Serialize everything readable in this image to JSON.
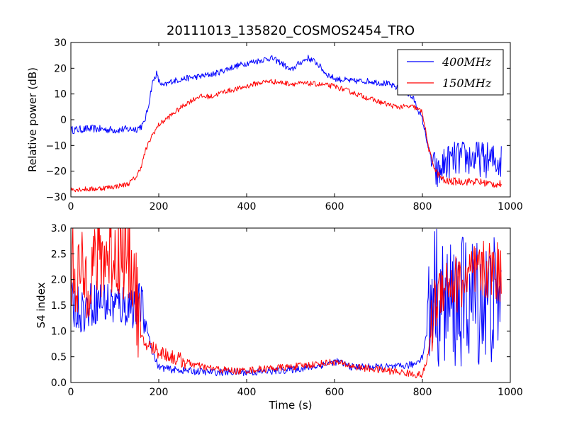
{
  "figure_title": "20111013_135820_COSMOS2454_TRO",
  "chart_data": [
    {
      "type": "line",
      "title": "20111013_135820_COSMOS2454_TRO",
      "xlabel": "",
      "ylabel": "Relative power (dB)",
      "xlim": [
        0,
        1000
      ],
      "ylim": [
        -30,
        30
      ],
      "xticks": [
        "0",
        "200",
        "400",
        "600",
        "800",
        "1000"
      ],
      "yticks": [
        "−30",
        "−20",
        "−10",
        "0",
        "10",
        "20",
        "30"
      ],
      "grid": false,
      "legend": "top-right",
      "series": [
        {
          "name": "400MHz",
          "legend_label": "400MHz",
          "color": "#0000ff",
          "x": [
            0,
            50,
            100,
            150,
            165,
            175,
            185,
            195,
            200,
            210,
            230,
            260,
            300,
            330,
            360,
            400,
            430,
            455,
            480,
            500,
            520,
            540,
            560,
            580,
            600,
            640,
            680,
            720,
            760,
            780,
            800,
            815,
            825,
            835,
            850,
            880,
            920,
            960,
            980
          ],
          "y": [
            -4,
            -3.5,
            -4,
            -3.5,
            -2,
            4,
            14,
            18,
            15,
            13,
            15,
            16,
            17,
            18,
            20,
            22,
            23,
            24,
            22,
            19,
            22,
            24,
            22,
            18,
            16,
            15,
            15,
            14,
            11,
            8,
            0,
            -12,
            -18,
            -22,
            -17,
            -15,
            -15,
            -16,
            -16
          ]
        },
        {
          "name": "150MHz",
          "legend_label": "150MHz",
          "color": "#ff0000",
          "x": [
            0,
            50,
            100,
            130,
            150,
            160,
            170,
            185,
            200,
            230,
            260,
            290,
            320,
            350,
            380,
            420,
            450,
            500,
            550,
            600,
            650,
            700,
            740,
            780,
            800,
            815,
            830,
            850,
            880,
            920,
            960,
            980
          ],
          "y": [
            -27,
            -27,
            -26,
            -25,
            -22,
            -18,
            -12,
            -6,
            -2,
            2,
            6,
            9,
            9,
            11,
            12,
            14,
            15,
            14,
            14,
            13,
            10,
            7,
            5,
            5,
            3,
            -12,
            -20,
            -24,
            -24,
            -24,
            -25,
            -25
          ]
        }
      ]
    },
    {
      "type": "line",
      "title": "",
      "xlabel": "Time (s)",
      "ylabel": "S4 index",
      "xlim": [
        0,
        1000
      ],
      "ylim": [
        0,
        3
      ],
      "xticks": [
        "0",
        "200",
        "400",
        "600",
        "800",
        "1000"
      ],
      "yticks": [
        "0.0",
        "0.5",
        "1.0",
        "1.5",
        "2.0",
        "2.5",
        "3.0"
      ],
      "grid": false,
      "series": [
        {
          "name": "400MHz",
          "color": "#0000ff",
          "x": [
            0,
            30,
            60,
            100,
            140,
            160,
            175,
            185,
            200,
            230,
            280,
            330,
            380,
            420,
            460,
            500,
            550,
            600,
            610,
            640,
            700,
            740,
            780,
            800,
            815,
            825,
            840,
            870,
            900,
            940,
            980
          ],
          "y": [
            1.5,
            1.4,
            1.6,
            1.5,
            1.5,
            1.5,
            1.0,
            0.6,
            0.3,
            0.25,
            0.22,
            0.2,
            0.2,
            0.2,
            0.22,
            0.25,
            0.3,
            0.4,
            0.4,
            0.3,
            0.3,
            0.3,
            0.35,
            0.5,
            1.2,
            2.0,
            1.5,
            1.5,
            1.6,
            1.6,
            1.6
          ]
        },
        {
          "name": "150MHz",
          "color": "#ff0000",
          "x": [
            0,
            30,
            60,
            90,
            120,
            140,
            150,
            160,
            180,
            200,
            230,
            260,
            300,
            340,
            380,
            420,
            460,
            500,
            550,
            600,
            650,
            700,
            750,
            790,
            800,
            810,
            820,
            830,
            850,
            880,
            920,
            960,
            980
          ],
          "y": [
            2.2,
            2.0,
            2.4,
            2.5,
            2.5,
            2.3,
            1.6,
            0.8,
            0.7,
            0.6,
            0.5,
            0.4,
            0.3,
            0.25,
            0.22,
            0.25,
            0.28,
            0.3,
            0.35,
            0.4,
            0.3,
            0.25,
            0.2,
            0.15,
            0.15,
            0.4,
            1.0,
            1.6,
            2.0,
            1.9,
            2.1,
            2.2,
            2.1
          ]
        }
      ]
    }
  ]
}
